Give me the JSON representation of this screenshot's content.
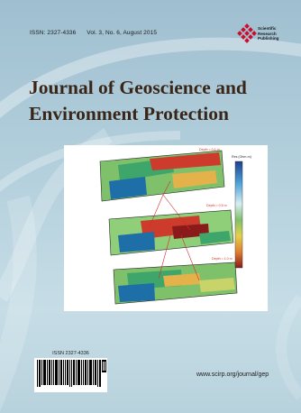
{
  "header": {
    "issn": "ISSN: 2327-4336",
    "volume_info": "Vol. 3, No. 6, August 2015"
  },
  "publisher": {
    "logo_text_lines": [
      "Scientific",
      "Research",
      "Publishing"
    ],
    "logo_color": "#c8102e"
  },
  "title": {
    "line1": "Journal of Geoscience and",
    "line2": "Environment Protection"
  },
  "figure": {
    "depth_labels": [
      "Depth = 0.1 m",
      "Depth = 0.5 m",
      "Depth = 1.0 m"
    ],
    "colorbar_title": "Res (Ohm-m)",
    "layer_palette": [
      "#1e6ea8",
      "#3fa66b",
      "#7fc06a",
      "#c8d46a",
      "#e3b24a",
      "#cc3b2b",
      "#8b1a1a"
    ]
  },
  "barcode": {
    "issn": "ISSN 2327-4336"
  },
  "footer": {
    "url": "www.scirp.org/journal/gep"
  },
  "colors": {
    "title": "#3a2618",
    "background_top": "#9fbfd0",
    "background_bottom": "#c6dde6"
  }
}
